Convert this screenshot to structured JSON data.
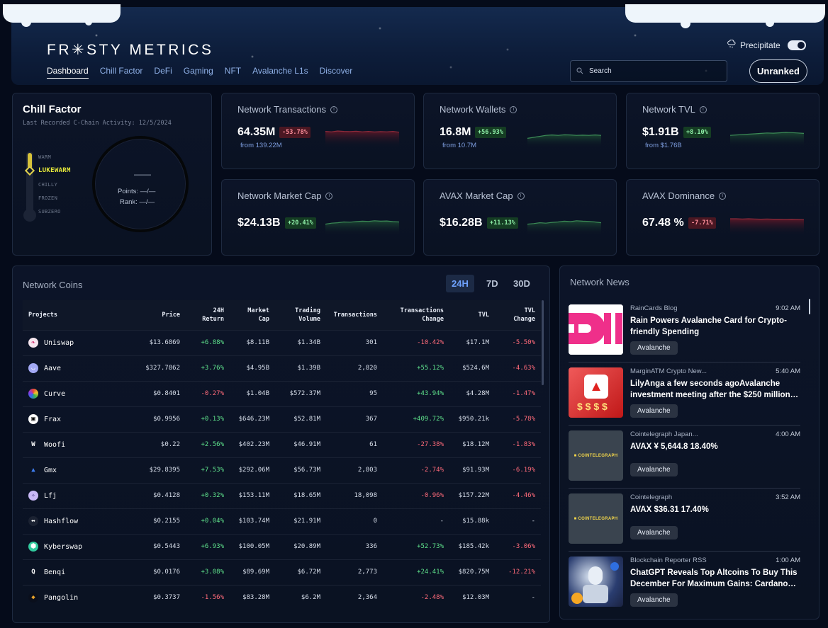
{
  "header": {
    "logo": "FR✳STY METRICS",
    "nav": [
      "Dashboard",
      "Chill Factor",
      "DeFi",
      "Gaming",
      "NFT",
      "Avalanche L1s",
      "Discover"
    ],
    "active_nav": "Dashboard",
    "precipitate_label": "Precipitate",
    "precipitate_on": true,
    "search_placeholder": "Search",
    "rank_label": "Unranked"
  },
  "chill_factor": {
    "title": "Chill Factor",
    "subtitle": "Last Recorded C-Chain Activity: 12/5/2024",
    "levels": [
      "WARM",
      "LUKEWARM",
      "CHILLY",
      "FROZEN",
      "SUBZERO"
    ],
    "current_level": "LUKEWARM",
    "score": "——",
    "points": "Points: —/—",
    "rank": "Rank: —/—"
  },
  "stats": [
    {
      "title": "Network Transactions",
      "value": "64.35M",
      "change": "-53.78%",
      "direction": "down",
      "from": "from 139.22M",
      "trend": [
        0.8,
        0.78,
        0.82,
        0.8,
        0.79,
        0.81,
        0.78,
        0.8,
        0.77,
        0.79,
        0.78,
        0.8,
        0.76
      ]
    },
    {
      "title": "Network Wallets",
      "value": "16.8M",
      "change": "+56.93%",
      "direction": "up",
      "from": "from 10.7M",
      "trend": [
        0.45,
        0.5,
        0.55,
        0.6,
        0.62,
        0.6,
        0.63,
        0.62,
        0.6,
        0.61,
        0.6,
        0.62,
        0.6
      ]
    },
    {
      "title": "Network TVL",
      "value": "$1.91B",
      "change": "+8.10%",
      "direction": "up",
      "from": "from $1.76B",
      "trend": [
        0.6,
        0.62,
        0.64,
        0.66,
        0.68,
        0.7,
        0.72,
        0.71,
        0.73,
        0.75,
        0.74,
        0.72,
        0.7
      ]
    },
    {
      "title": "Network Market Cap",
      "value": "$24.13B",
      "change": "+20.41%",
      "direction": "up",
      "from": "",
      "trend": [
        0.55,
        0.6,
        0.62,
        0.66,
        0.65,
        0.68,
        0.7,
        0.69,
        0.72,
        0.7,
        0.71,
        0.68,
        0.66
      ]
    },
    {
      "title": "AVAX Market Cap",
      "value": "$16.28B",
      "change": "+11.13%",
      "direction": "up",
      "from": "",
      "trend": [
        0.55,
        0.58,
        0.62,
        0.6,
        0.64,
        0.66,
        0.7,
        0.68,
        0.72,
        0.7,
        0.69,
        0.66,
        0.62
      ]
    },
    {
      "title": "AVAX Dominance",
      "value": "67.48 %",
      "change": "-7.71%",
      "direction": "down",
      "from": "",
      "trend": [
        0.82,
        0.82,
        0.81,
        0.82,
        0.81,
        0.8,
        0.81,
        0.8,
        0.8,
        0.79,
        0.8,
        0.79,
        0.78
      ]
    }
  ],
  "coins": {
    "title": "Network Coins",
    "ranges": [
      "24H",
      "7D",
      "30D"
    ],
    "active_range": "24H",
    "columns": [
      "Projects",
      "Price",
      "24H Return",
      "Market Cap",
      "Trading Volume",
      "Transactions",
      "Transactions Change",
      "TVL",
      "TVL Change"
    ],
    "rows": [
      {
        "name": "Uniswap",
        "icon": "uniswap-icon",
        "color": "#f3e8ef",
        "price": "$13.6869",
        "ret": "+6.88%",
        "mcap": "$8.11B",
        "vol": "$1.34B",
        "tx": "301",
        "txchg": "-10.42%",
        "tvl": "$17.1M",
        "tvlchg": "-5.50%"
      },
      {
        "name": "Aave",
        "icon": "aave-icon",
        "color": "#9ea6f2",
        "price": "$327.7862",
        "ret": "+3.76%",
        "mcap": "$4.95B",
        "vol": "$1.39B",
        "tx": "2,820",
        "txchg": "+55.12%",
        "tvl": "$524.6M",
        "tvlchg": "-4.63%"
      },
      {
        "name": "Curve",
        "icon": "curve-icon",
        "color": "#e8b93a",
        "price": "$0.8401",
        "ret": "-0.27%",
        "mcap": "$1.04B",
        "vol": "$572.37M",
        "tx": "95",
        "txchg": "+43.94%",
        "tvl": "$4.28M",
        "tvlchg": "-1.47%"
      },
      {
        "name": "Frax",
        "icon": "frax-icon",
        "color": "#ffffff",
        "price": "$0.9956",
        "ret": "+0.13%",
        "mcap": "$646.23M",
        "vol": "$52.81M",
        "tx": "367",
        "txchg": "+409.72%",
        "tvl": "$950.21k",
        "tvlchg": "-5.78%"
      },
      {
        "name": "Woofi",
        "icon": "woofi-icon",
        "color": "#0a0f1c",
        "price": "$0.22",
        "ret": "+2.56%",
        "mcap": "$402.23M",
        "vol": "$46.91M",
        "tx": "61",
        "txchg": "-27.38%",
        "tvl": "$18.12M",
        "tvlchg": "-1.83%"
      },
      {
        "name": "Gmx",
        "icon": "gmx-icon",
        "color": "#3f7df0",
        "price": "$29.8395",
        "ret": "+7.53%",
        "mcap": "$292.06M",
        "vol": "$56.73M",
        "tx": "2,803",
        "txchg": "-2.74%",
        "tvl": "$91.93M",
        "tvlchg": "-6.19%"
      },
      {
        "name": "Lfj",
        "icon": "lfj-icon",
        "color": "#b9a8f2",
        "price": "$0.4128",
        "ret": "+0.32%",
        "mcap": "$153.11M",
        "vol": "$18.65M",
        "tx": "18,098",
        "txchg": "-0.96%",
        "tvl": "$157.22M",
        "tvlchg": "-4.46%"
      },
      {
        "name": "Hashflow",
        "icon": "hashflow-icon",
        "color": "#1b2232",
        "price": "$0.2155",
        "ret": "+0.04%",
        "mcap": "$103.74M",
        "vol": "$21.91M",
        "tx": "0",
        "txchg": "-",
        "tvl": "$15.88k",
        "tvlchg": "-"
      },
      {
        "name": "Kyberswap",
        "icon": "kyberswap-icon",
        "color": "#31cb9e",
        "price": "$0.5443",
        "ret": "+6.93%",
        "mcap": "$100.05M",
        "vol": "$20.89M",
        "tx": "336",
        "txchg": "+52.73%",
        "tvl": "$185.42k",
        "tvlchg": "-3.06%"
      },
      {
        "name": "Benqi",
        "icon": "benqi-icon",
        "color": "#0a0f1c",
        "price": "$0.0176",
        "ret": "+3.08%",
        "mcap": "$89.69M",
        "vol": "$6.72M",
        "tx": "2,773",
        "txchg": "+24.41%",
        "tvl": "$820.75M",
        "tvlchg": "-12.21%"
      },
      {
        "name": "Pangolin",
        "icon": "pangolin-icon",
        "color": "#e7a32b",
        "price": "$0.3737",
        "ret": "-1.56%",
        "mcap": "$83.28M",
        "vol": "$6.2M",
        "tx": "2,364",
        "txchg": "-2.48%",
        "tvl": "$12.03M",
        "tvlchg": "-"
      }
    ]
  },
  "news": {
    "title": "Network News",
    "items": [
      {
        "source": "RainCards Blog",
        "time": "9:02 AM",
        "headline": "Rain Powers Avalanche Card for Crypto-friendly Spending",
        "tag": "Avalanche",
        "thumb": "raincards-logo"
      },
      {
        "source": "MarginATM Crypto New...",
        "time": "5:40 AM",
        "headline": "LilyAnga a few seconds agoAvalanche investment meeting after the $250 million…",
        "tag": "Avalanche",
        "thumb": "avalanche-investment-image"
      },
      {
        "source": "Cointelegraph Japan...",
        "time": "4:00 AM",
        "headline": "AVAX ¥ 5,644.8 18.40%",
        "tag": "Avalanche",
        "thumb": "cointelegraph-logo"
      },
      {
        "source": "Cointelegraph",
        "time": "3:52 AM",
        "headline": "AVAX $36.31 17.40%",
        "tag": "Avalanche",
        "thumb": "cointelegraph-logo"
      },
      {
        "source": "Blockchain Reporter RSS",
        "time": "1:00 AM",
        "headline": "ChatGPT Reveals Top Altcoins To Buy This December For Maximum Gains: Cardano…",
        "tag": "Avalanche",
        "thumb": "robot-image"
      }
    ]
  },
  "colors": {
    "up": "#5fe28c",
    "down": "#ff6b7a",
    "accent": "#6fa2ff",
    "level_active": "#e5e83a"
  }
}
